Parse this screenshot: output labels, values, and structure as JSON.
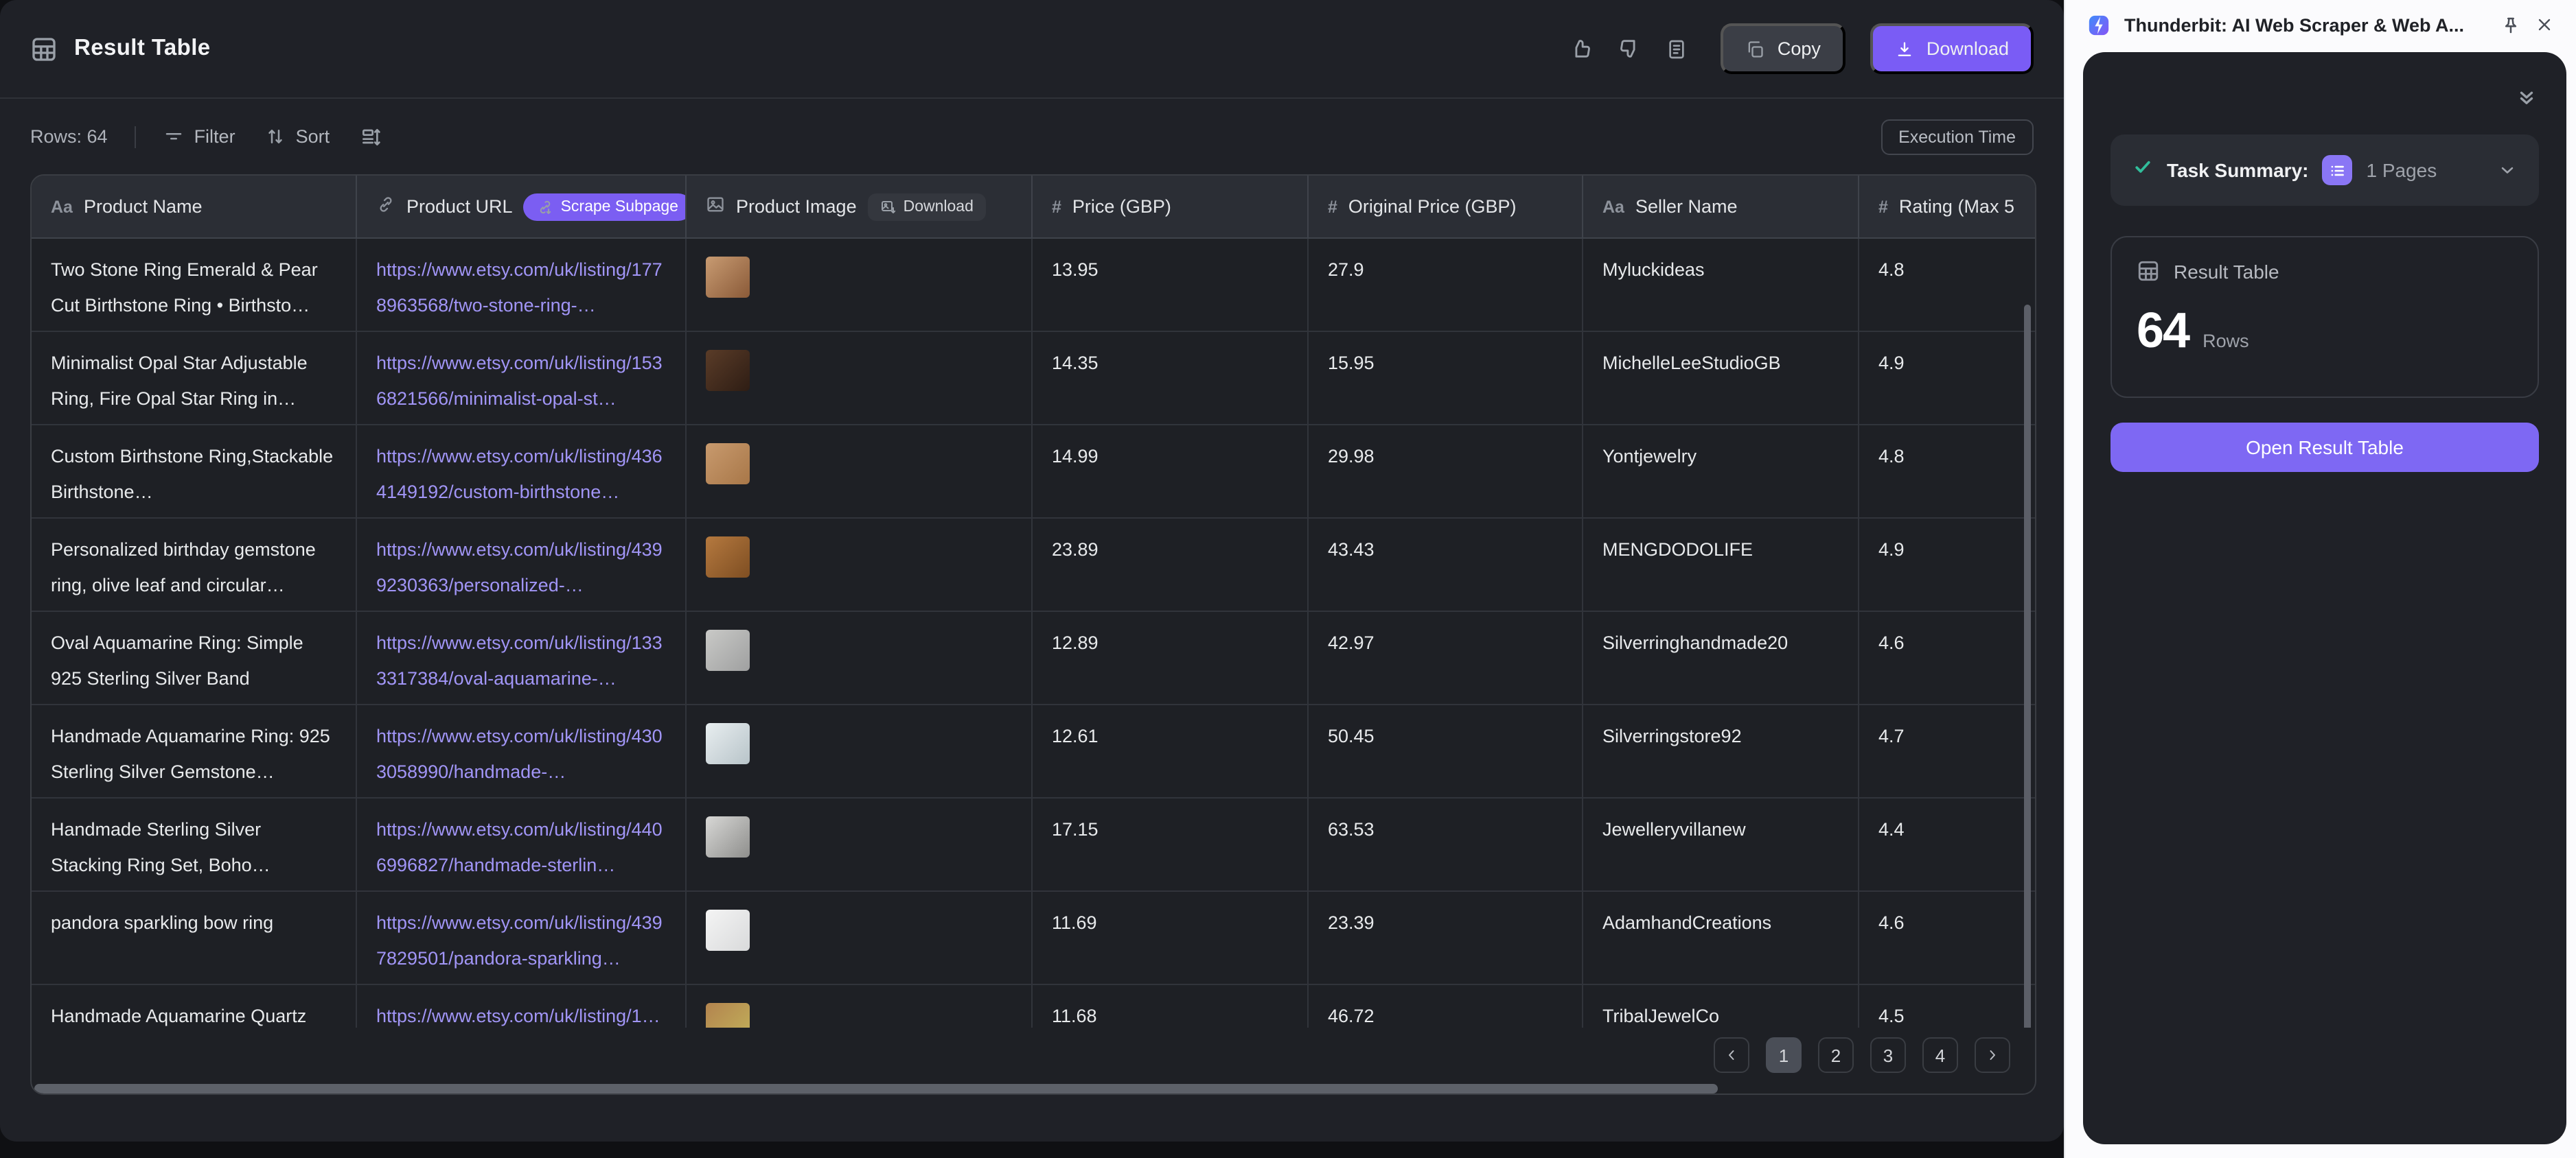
{
  "header": {
    "title": "Result Table",
    "copy_label": "Copy",
    "download_label": "Download"
  },
  "toolbar": {
    "rows_label": "Rows: 64",
    "filter_label": "Filter",
    "sort_label": "Sort",
    "execution_time_label": "Execution Time"
  },
  "table": {
    "columns": [
      {
        "label": "Product Name",
        "icon": "Aa"
      },
      {
        "label": "Product URL",
        "icon": "link",
        "badge": "Scrape Subpage",
        "badge_style": "purple",
        "badge_icon": "link-download-icon"
      },
      {
        "label": "Product Image",
        "icon": "image",
        "badge": "Download",
        "badge_style": "dark",
        "badge_icon": "image-download-icon"
      },
      {
        "label": "Price (GBP)",
        "icon": "#"
      },
      {
        "label": "Original Price (GBP)",
        "icon": "#"
      },
      {
        "label": "Seller Name",
        "icon": "Aa"
      },
      {
        "label": "Rating (Max 5",
        "icon": "#"
      }
    ],
    "rows": [
      {
        "name": "Two Stone Ring Emerald & Pear Cut Birthstone Ring • Birthsto…",
        "url": "https://www.etsy.com/uk/listing/1778963568/two-stone-ring-…",
        "image_colors": [
          "#c89b72",
          "#8a5a38"
        ],
        "price": "13.95",
        "original_price": "27.9",
        "seller": "Myluckideas",
        "rating": "4.8"
      },
      {
        "name": "Minimalist Opal Star Adjustable Ring, Fire Opal Star Ring in…",
        "url": "https://www.etsy.com/uk/listing/1536821566/minimalist-opal-st…",
        "image_colors": [
          "#5a3c28",
          "#2e1d14"
        ],
        "price": "14.35",
        "original_price": "15.95",
        "seller": "MichelleLeeStudioGB",
        "rating": "4.9"
      },
      {
        "name": "Custom Birthstone Ring,Stackable Birthstone…",
        "url": "https://www.etsy.com/uk/listing/4364149192/custom-birthstone…",
        "image_colors": [
          "#c89a6e",
          "#a87748"
        ],
        "price": "14.99",
        "original_price": "29.98",
        "seller": "Yontjewelry",
        "rating": "4.8"
      },
      {
        "name": "Personalized birthday gemstone ring, olive leaf and circular…",
        "url": "https://www.etsy.com/uk/listing/4399230363/personalized-…",
        "image_colors": [
          "#b5793f",
          "#7e4e22"
        ],
        "price": "23.89",
        "original_price": "43.43",
        "seller": "MENGDODOLIFE",
        "rating": "4.9"
      },
      {
        "name": "Oval Aquamarine Ring: Simple 925 Sterling Silver Band",
        "url": "https://www.etsy.com/uk/listing/1333317384/oval-aquamarine-…",
        "image_colors": [
          "#c9c9c7",
          "#9fa0a0"
        ],
        "price": "12.89",
        "original_price": "42.97",
        "seller": "Silverringhandmade20",
        "rating": "4.6"
      },
      {
        "name": "Handmade Aquamarine Ring: 925 Sterling Silver Gemstone…",
        "url": "https://www.etsy.com/uk/listing/4303058990/handmade-…",
        "image_colors": [
          "#e8eef0",
          "#b8c4c9"
        ],
        "price": "12.61",
        "original_price": "50.45",
        "seller": "Silverringstore92",
        "rating": "4.7"
      },
      {
        "name": "Handmade Sterling Silver Stacking Ring Set, Boho…",
        "url": "https://www.etsy.com/uk/listing/4406996827/handmade-sterlin…",
        "image_colors": [
          "#d8d8d6",
          "#8e8e8c"
        ],
        "price": "17.15",
        "original_price": "63.53",
        "seller": "Jewelleryvillanew",
        "rating": "4.4"
      },
      {
        "name": "pandora sparkling bow ring",
        "url": "https://www.etsy.com/uk/listing/4397829501/pandora-sparkling…",
        "image_colors": [
          "#f4f4f4",
          "#d9dadb"
        ],
        "price": "11.69",
        "original_price": "23.39",
        "seller": "AdamhandCreations",
        "rating": "4.6"
      },
      {
        "name": "Handmade Aquamarine Quartz",
        "url": "https://www.etsy.com/uk/listing/1…",
        "image_colors": [
          "#b3844f",
          "#c2b25a"
        ],
        "price": "11.68",
        "original_price": "46.72",
        "seller": "TribalJewelCo",
        "rating": "4.5"
      }
    ]
  },
  "pagination": {
    "pages": [
      "1",
      "2",
      "3",
      "4"
    ],
    "active": "1"
  },
  "side_panel": {
    "title": "Thunderbit: AI Web Scraper & Web A...",
    "task_summary_label": "Task Summary:",
    "pages_value": "1 Pages",
    "result_table_label": "Result Table",
    "row_count": "64",
    "rows_label": "Rows",
    "open_button_label": "Open Result Table"
  },
  "colors": {
    "accent_purple": "#7a5cf5",
    "badge_purple": "#7b5ef2",
    "link_purple": "#a195f6",
    "success_green": "#31bd9b",
    "main_bg": "#1f2127",
    "row_bg": "#1e2025",
    "header_row_bg": "#2b2e35",
    "panel_bg": "#fbfbfd"
  }
}
